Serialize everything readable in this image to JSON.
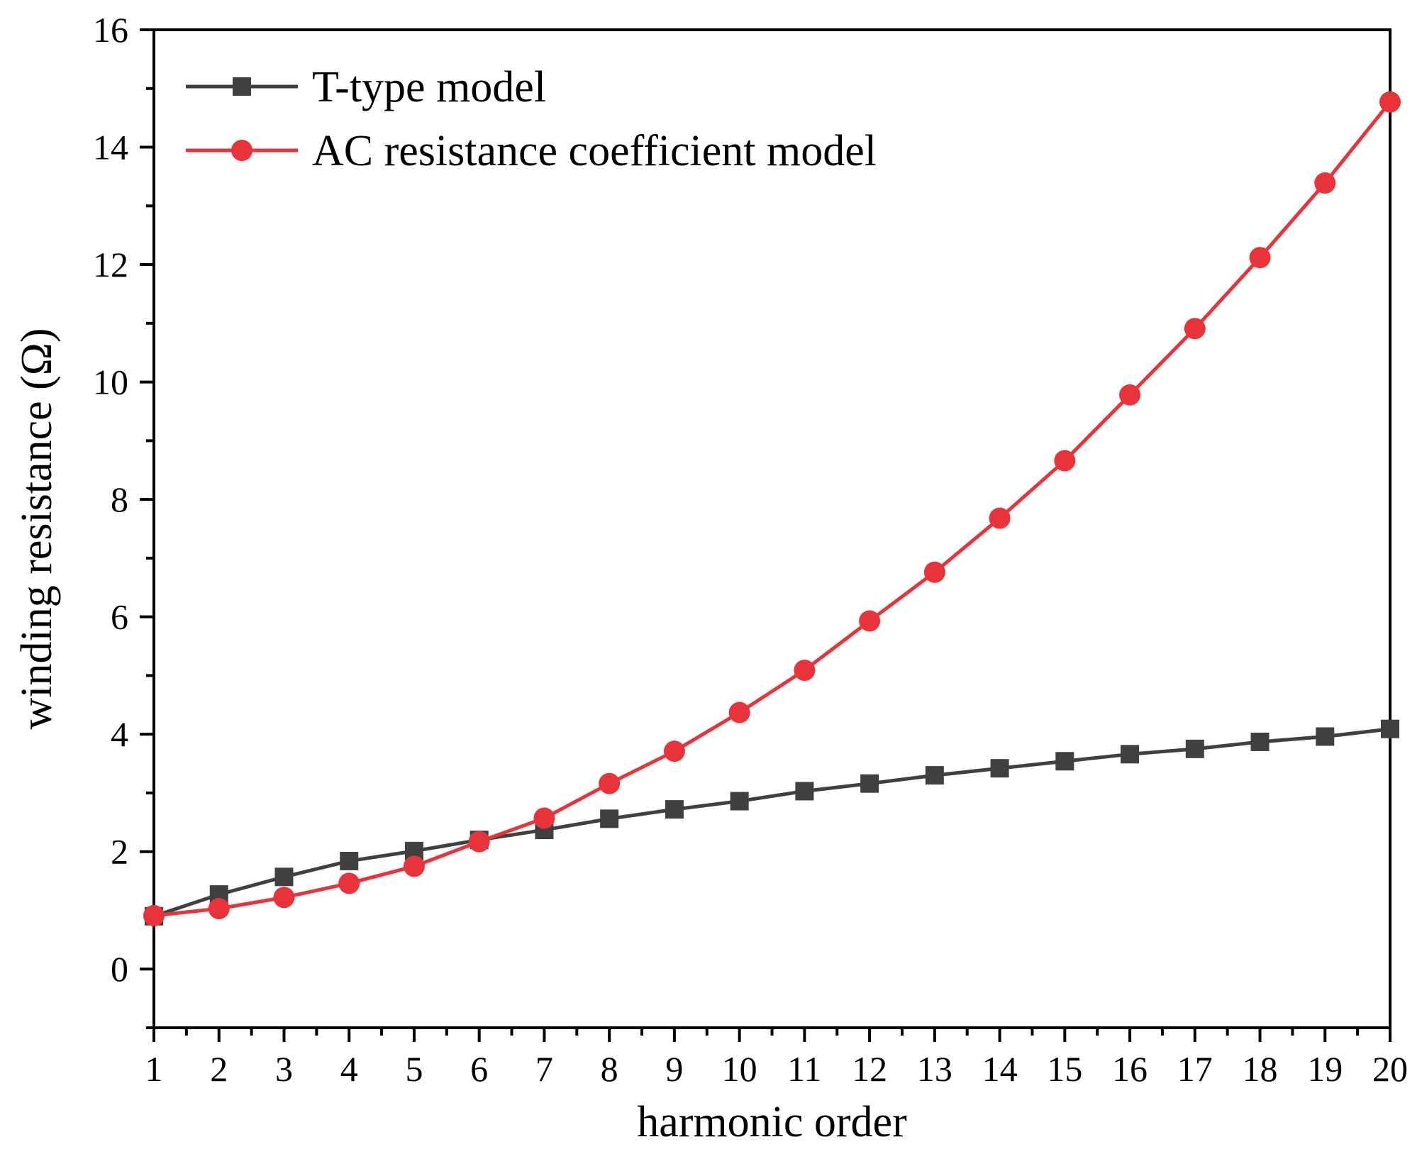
{
  "chart_data": {
    "type": "line",
    "title": "",
    "xlabel": "harmonic order",
    "ylabel": "winding resistance (Ω)",
    "xlim": [
      1,
      20
    ],
    "ylim": [
      -1,
      16
    ],
    "x_ticks": [
      1,
      2,
      3,
      4,
      5,
      6,
      7,
      8,
      9,
      10,
      11,
      12,
      13,
      14,
      15,
      16,
      17,
      18,
      19,
      20
    ],
    "y_ticks": [
      0,
      2,
      4,
      6,
      8,
      10,
      12,
      14,
      16
    ],
    "grid": false,
    "legend_position": "top-left",
    "x": [
      1,
      2,
      3,
      4,
      5,
      6,
      7,
      8,
      9,
      10,
      11,
      12,
      13,
      14,
      15,
      16,
      17,
      18,
      19,
      20
    ],
    "series": [
      {
        "name": "T-type model",
        "color": "#404040",
        "marker": "square",
        "values": [
          0.9,
          1.27,
          1.57,
          1.84,
          2.01,
          2.2,
          2.37,
          2.56,
          2.72,
          2.86,
          3.03,
          3.16,
          3.3,
          3.42,
          3.54,
          3.66,
          3.75,
          3.87,
          3.96,
          4.09
        ]
      },
      {
        "name": "AC resistance coefficient model",
        "color": "#e8333a",
        "marker": "circle",
        "values": [
          0.91,
          1.03,
          1.22,
          1.46,
          1.75,
          2.17,
          2.57,
          3.16,
          3.71,
          4.37,
          5.09,
          5.93,
          6.76,
          7.68,
          8.66,
          9.78,
          10.91,
          12.12,
          13.39,
          14.77
        ]
      }
    ]
  }
}
